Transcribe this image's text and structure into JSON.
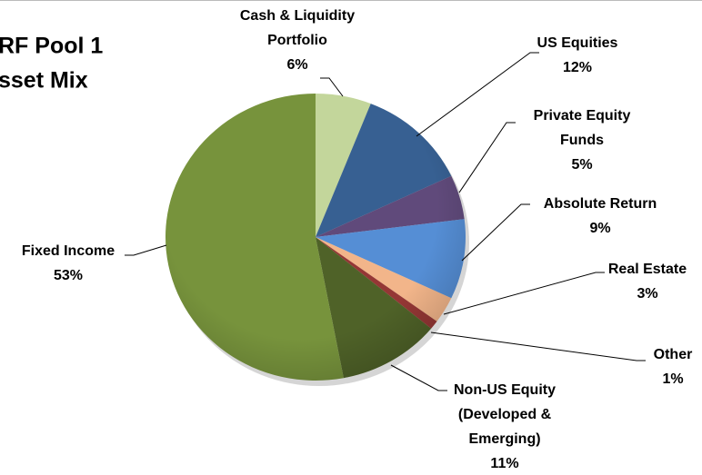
{
  "chart_data": {
    "type": "pie",
    "title": [
      "RF Pool 1",
      "sset Mix"
    ],
    "categories": [
      [
        "Cash & Liquidity",
        "Portfolio"
      ],
      [
        "US Equities"
      ],
      [
        "Private Equity",
        "Funds"
      ],
      [
        "Absolute Return"
      ],
      [
        "Real Estate"
      ],
      [
        "Other"
      ],
      [
        "Non-US Equity",
        "(Developed &",
        "Emerging)"
      ],
      [
        "Fixed Income"
      ]
    ],
    "values": [
      6,
      12,
      5,
      9,
      3,
      1,
      11,
      53
    ],
    "value_labels": [
      "6%",
      "12%",
      "5%",
      "9%",
      "3%",
      "1%",
      "11%",
      "53%"
    ],
    "colors": [
      "#c3d69b",
      "#376092",
      "#604a7b",
      "#558ed5",
      "#f2b58a",
      "#953735",
      "#4f6228",
      "#77933c"
    ]
  }
}
